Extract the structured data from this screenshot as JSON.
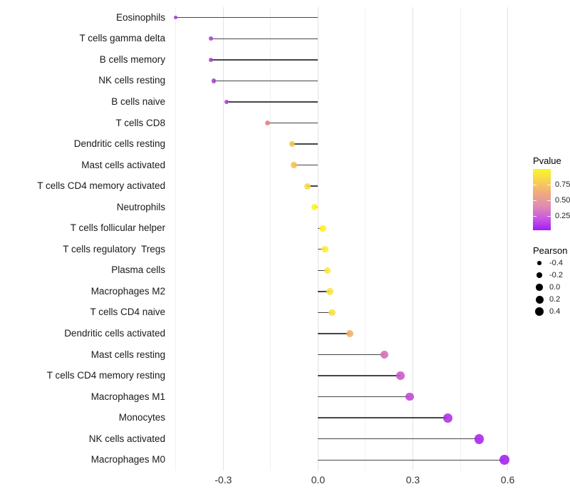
{
  "figure": {
    "background": "#ffffff"
  },
  "chart_data": {
    "type": "scatter",
    "variant": "horizontal-lollipop",
    "title": "",
    "xlabel": "",
    "ylabel": "",
    "xlim": [
      -0.47,
      0.68
    ],
    "grid": "on",
    "legend_position": "right",
    "x_major_ticks": [
      {
        "value": -0.3,
        "label": "-0.3"
      },
      {
        "value": 0.0,
        "label": "0.0"
      },
      {
        "value": 0.3,
        "label": "0.3"
      },
      {
        "value": 0.6,
        "label": "0.6"
      }
    ],
    "x_minor_ticks": [
      -0.45,
      -0.15,
      0.15,
      0.45
    ],
    "points": [
      {
        "label": "Eosinophils",
        "pearson": -0.45,
        "pvalue": 0.12,
        "color": "#A437D4"
      },
      {
        "label": "T cells gamma delta",
        "pearson": -0.34,
        "pvalue": 0.15,
        "color": "#A83FD0"
      },
      {
        "label": "B cells memory",
        "pearson": -0.34,
        "pvalue": 0.15,
        "color": "#A83FD0"
      },
      {
        "label": "NK cells resting",
        "pearson": -0.33,
        "pvalue": 0.15,
        "color": "#A83FD0"
      },
      {
        "label": "B cells naive",
        "pearson": -0.29,
        "pvalue": 0.17,
        "color": "#AB41D2"
      },
      {
        "label": "T cells CD8",
        "pearson": -0.16,
        "pvalue": 0.53,
        "color": "#E8837B"
      },
      {
        "label": "Dendritic cells resting",
        "pearson": -0.082,
        "pvalue": 0.74,
        "color": "#F2C253"
      },
      {
        "label": "Mast cells activated",
        "pearson": -0.077,
        "pvalue": 0.74,
        "color": "#F2C253"
      },
      {
        "label": "T cells CD4 memory activated",
        "pearson": -0.034,
        "pvalue": 0.82,
        "color": "#F5DC49"
      },
      {
        "label": "Neutrophils",
        "pearson": -0.011,
        "pvalue": 0.97,
        "color": "#FBF620"
      },
      {
        "label": "T cells follicular helper",
        "pearson": 0.015,
        "pvalue": 0.93,
        "color": "#FAF02C"
      },
      {
        "label": "T cells regulatory  Tregs",
        "pearson": 0.022,
        "pvalue": 0.91,
        "color": "#F9ED33"
      },
      {
        "label": "Plasma cells",
        "pearson": 0.03,
        "pvalue": 0.89,
        "color": "#F8E93A"
      },
      {
        "label": "Macrophages M2",
        "pearson": 0.037,
        "pvalue": 0.87,
        "color": "#F7E540"
      },
      {
        "label": "T cells CD4 naive",
        "pearson": 0.044,
        "pvalue": 0.85,
        "color": "#F6E145"
      },
      {
        "label": "Dendritic cells activated",
        "pearson": 0.1,
        "pvalue": 0.68,
        "color": "#F0B067"
      },
      {
        "label": "Mast cells resting",
        "pearson": 0.21,
        "pvalue": 0.38,
        "color": "#D46CBC"
      },
      {
        "label": "T cells CD4 memory resting",
        "pearson": 0.26,
        "pvalue": 0.31,
        "color": "#CA56CA"
      },
      {
        "label": "Macrophages M1",
        "pearson": 0.29,
        "pvalue": 0.25,
        "color": "#BE44D6"
      },
      {
        "label": "Monocytes",
        "pearson": 0.41,
        "pvalue": 0.17,
        "color": "#AE2DE2"
      },
      {
        "label": "NK cells activated",
        "pearson": 0.51,
        "pvalue": 0.13,
        "color": "#A723EA"
      },
      {
        "label": "Macrophages M0",
        "pearson": 0.59,
        "pvalue": 0.1,
        "color": "#A21FF0"
      }
    ]
  },
  "legend": {
    "pvalue": {
      "title": "Pvalue",
      "range": [
        0.02,
        1.0
      ],
      "gradient_stops": [
        "#FBF724",
        "#F8D155",
        "#F0A87F",
        "#E18DB0",
        "#C95BE0",
        "#A21CF8"
      ],
      "ticks": [
        {
          "label": "0.75",
          "value": 0.75
        },
        {
          "label": "0.50",
          "value": 0.5
        },
        {
          "label": "0.25",
          "value": 0.25
        }
      ]
    },
    "pearson": {
      "title": "Pearson",
      "dot_color": "#000000",
      "entries": [
        {
          "label": "-0.4",
          "value": -0.4
        },
        {
          "label": "-0.2",
          "value": -0.2
        },
        {
          "label": "0.0",
          "value": 0.0
        },
        {
          "label": "0.2",
          "value": 0.2
        },
        {
          "label": "0.4",
          "value": 0.4
        }
      ]
    }
  },
  "colors": {
    "stem": "#454545",
    "grid_major": "#e3e3e3",
    "grid_minor": "#f1f1f1",
    "axis_text": "#333333",
    "category_text": "#1a1a1a"
  }
}
